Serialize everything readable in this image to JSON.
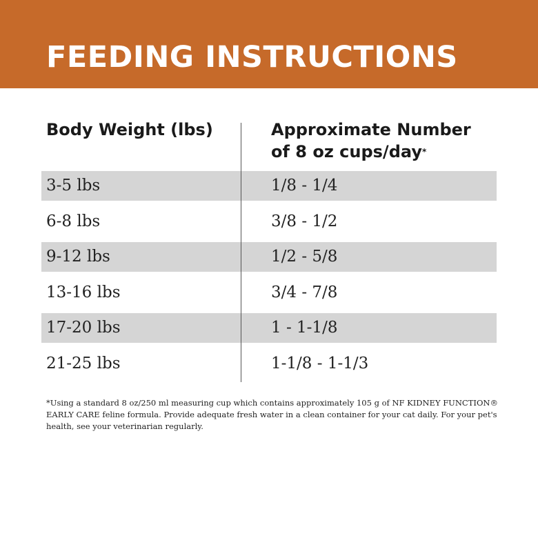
{
  "header": {
    "title": "FEEDING INSTRUCTIONS"
  },
  "table": {
    "columns": [
      {
        "label": "Body Weight (lbs)"
      },
      {
        "label": "Approximate Number of 8 oz cups/day",
        "note_mark": "*"
      }
    ],
    "rows": [
      [
        "3-5 lbs",
        "1/8 - 1/4"
      ],
      [
        "6-8 lbs",
        "3/8 - 1/2"
      ],
      [
        "9-12 lbs",
        "1/2 - 5/8"
      ],
      [
        "13-16 lbs",
        "3/4 - 7/8"
      ],
      [
        "17-20 lbs",
        "1 - 1-1/8"
      ],
      [
        "21-25 lbs",
        "1-1/8 - 1-1/3"
      ]
    ]
  },
  "footnote": "*Using a standard 8 oz/250 ml measuring cup which contains approximately 105 g of NF KIDNEY FUNCTION® EARLY CARE feline formula. Provide adequate fresh water in a clean container for your cat daily. For your pet's health, see your veterinarian regularly."
}
